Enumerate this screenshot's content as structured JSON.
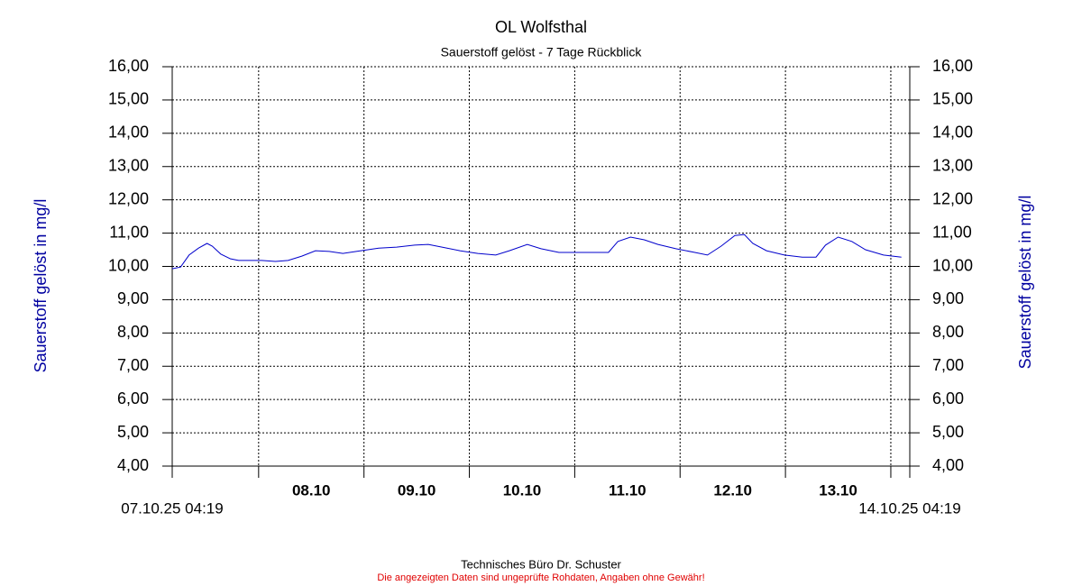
{
  "chart_data": {
    "type": "line",
    "title": "OL Wolfsthal",
    "subtitle": "Sauerstoff gelöst - 7 Tage Rückblick",
    "y_label": "Sauerstoff gelöst in mg/l",
    "y2_label": "Sauerstoff gelöst in mg/l",
    "x": [
      7.18,
      7.26,
      7.34,
      7.43,
      7.51,
      7.56,
      7.64,
      7.73,
      7.81,
      7.94,
      8.03,
      8.16,
      8.28,
      8.41,
      8.54,
      8.67,
      8.8,
      8.97,
      9.14,
      9.31,
      9.48,
      9.61,
      9.74,
      9.91,
      10.08,
      10.25,
      10.38,
      10.55,
      10.68,
      10.85,
      11.02,
      11.19,
      11.32,
      11.41,
      11.53,
      11.66,
      11.79,
      11.96,
      12.14,
      12.26,
      12.39,
      12.52,
      12.61,
      12.69,
      12.82,
      12.99,
      13.16,
      13.29,
      13.38,
      13.5,
      13.63,
      13.76,
      13.93,
      14.1
    ],
    "series": [
      {
        "color": "#0000cc",
        "values": [
          9.93,
          9.98,
          10.34,
          10.55,
          10.69,
          10.61,
          10.37,
          10.23,
          10.18,
          10.18,
          10.18,
          10.15,
          10.18,
          10.31,
          10.47,
          10.45,
          10.39,
          10.47,
          10.55,
          10.58,
          10.64,
          10.66,
          10.58,
          10.47,
          10.39,
          10.34,
          10.47,
          10.66,
          10.53,
          10.42,
          10.42,
          10.42,
          10.42,
          10.75,
          10.88,
          10.8,
          10.66,
          10.53,
          10.42,
          10.34,
          10.61,
          10.93,
          10.96,
          10.69,
          10.47,
          10.34,
          10.28,
          10.28,
          10.64,
          10.88,
          10.75,
          10.5,
          10.34,
          10.28
        ]
      }
    ],
    "xlim": [
      {
        "value": 7.18,
        "label": "07.10.25 04:19"
      },
      {
        "value": 14.18,
        "label": "14.10.25 04:19"
      }
    ],
    "xticks": [
      {
        "value": 8,
        "label": "08.10"
      },
      {
        "value": 9,
        "label": "09.10"
      },
      {
        "value": 10,
        "label": "10.10"
      },
      {
        "value": 11,
        "label": "11.10"
      },
      {
        "value": 12,
        "label": "12.10"
      },
      {
        "value": 13,
        "label": "13.10"
      },
      {
        "value": 14,
        "label": null
      }
    ],
    "ylim": [
      4,
      16
    ],
    "yticks": [
      {
        "value": 4,
        "label": "4,00"
      },
      {
        "value": 5,
        "label": "5,00"
      },
      {
        "value": 6,
        "label": "6,00"
      },
      {
        "value": 7,
        "label": "7,00"
      },
      {
        "value": 8,
        "label": "8,00"
      },
      {
        "value": 9,
        "label": "9,00"
      },
      {
        "value": 10,
        "label": "10,00"
      },
      {
        "value": 11,
        "label": "11,00"
      },
      {
        "value": 12,
        "label": "12,00"
      },
      {
        "value": 13,
        "label": "13,00"
      },
      {
        "value": 14,
        "label": "14,00"
      },
      {
        "value": 15,
        "label": "15,00"
      },
      {
        "value": 16,
        "label": "16,00"
      }
    ],
    "y2lim": [
      4,
      16
    ],
    "y2ticks": [
      {
        "value": 4,
        "label": "4,00"
      },
      {
        "value": 5,
        "label": "5,00"
      },
      {
        "value": 6,
        "label": "6,00"
      },
      {
        "value": 7,
        "label": "7,00"
      },
      {
        "value": 8,
        "label": "8,00"
      },
      {
        "value": 9,
        "label": "9,00"
      },
      {
        "value": 10,
        "label": "10,00"
      },
      {
        "value": 11,
        "label": "11,00"
      },
      {
        "value": 12,
        "label": "12,00"
      },
      {
        "value": 13,
        "label": "13,00"
      },
      {
        "value": 14,
        "label": "14,00"
      },
      {
        "value": 15,
        "label": "15,00"
      },
      {
        "value": 16,
        "label": "16,00"
      }
    ],
    "grid": true
  },
  "footer": {
    "credit": "Technisches Büro Dr. Schuster",
    "disclaimer": "Die angezeigten Daten sind ungeprüfte Rohdaten, Angaben ohne Gewähr!"
  }
}
